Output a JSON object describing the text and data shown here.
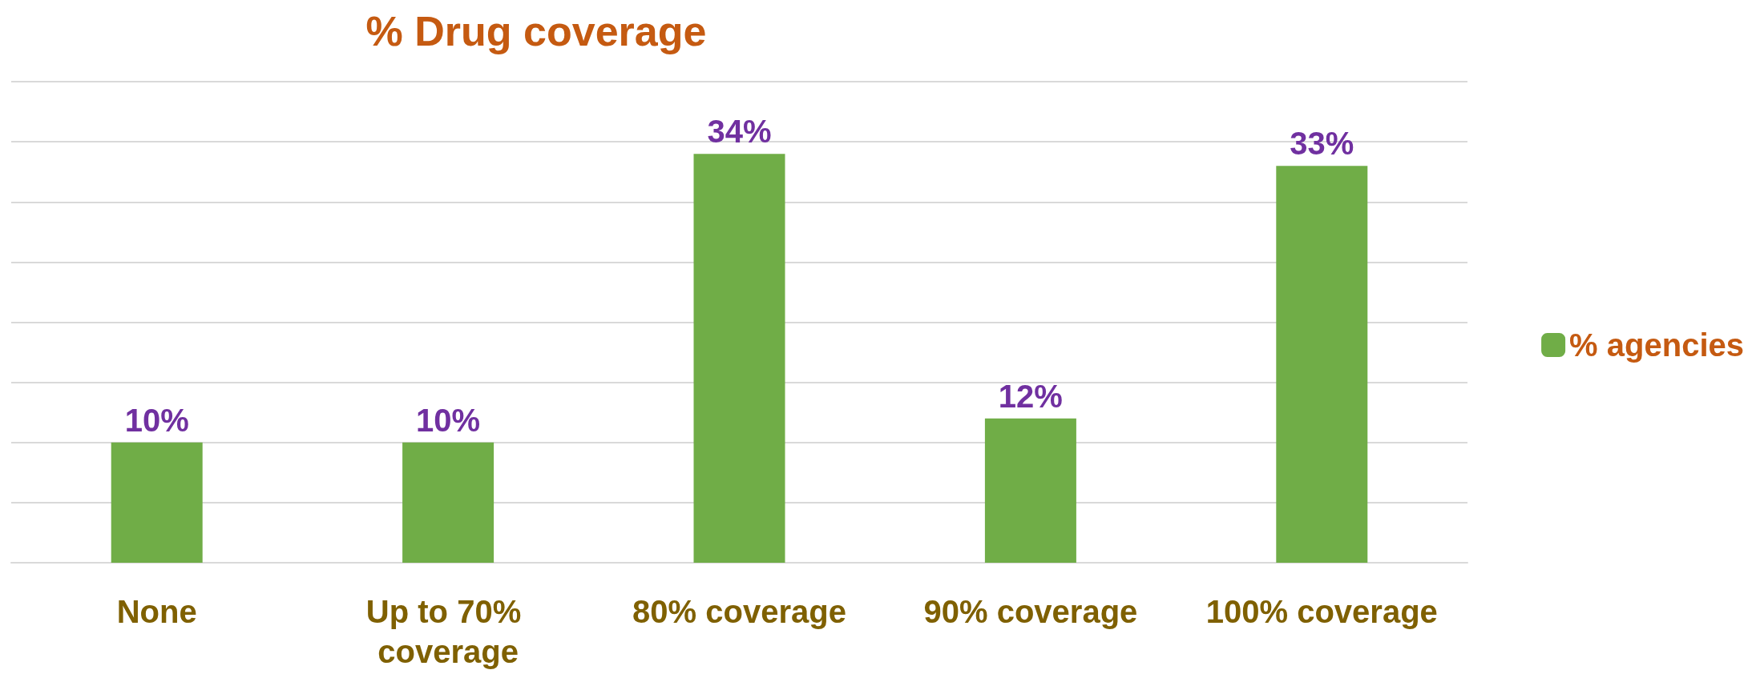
{
  "chart_data": {
    "type": "bar",
    "title": "% Drug coverage",
    "categories": [
      "None",
      "Up to 70% coverage",
      "80% coverage",
      "90% coverage",
      "100% coverage"
    ],
    "series": [
      {
        "name": "% agencies",
        "color": "#70ad47",
        "values": [
          10,
          10,
          34,
          12,
          33
        ],
        "value_labels": [
          "10%",
          "10%",
          "34%",
          "12%",
          "33%"
        ]
      }
    ],
    "relative": false,
    "ylim": [
      0,
      40
    ],
    "yticks": [
      {
        "value": 0,
        "label": null
      },
      {
        "value": 5,
        "label": null
      },
      {
        "value": 10,
        "label": null
      },
      {
        "value": 15,
        "label": null
      },
      {
        "value": 20,
        "label": null
      },
      {
        "value": 25,
        "label": null
      },
      {
        "value": 30,
        "label": null
      },
      {
        "value": 35,
        "label": null
      },
      {
        "value": 40,
        "label": null
      }
    ],
    "tick_labels": "x",
    "grid": "y",
    "legend": "right"
  }
}
